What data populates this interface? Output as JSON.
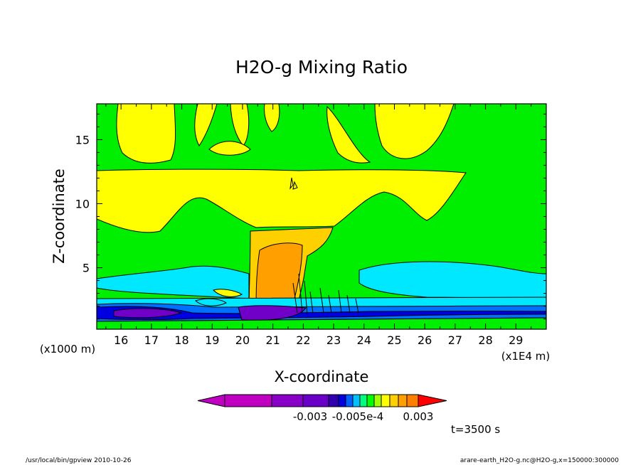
{
  "chart_data": {
    "type": "heatmap",
    "title": "H2O-g Mixing Ratio",
    "xlabel": "X-coordinate",
    "ylabel": "Z-coordinate",
    "x_unit_left": "(x1000 m)",
    "x_unit_right": "(x1E4 m)",
    "xlim": [
      15.2,
      30.0
    ],
    "ylim": [
      0.2,
      17.8
    ],
    "xticks": [
      "16",
      "17",
      "18",
      "19",
      "20",
      "21",
      "22",
      "23",
      "24",
      "25",
      "26",
      "27",
      "28",
      "29"
    ],
    "yticks": [
      "5",
      "10",
      "15"
    ],
    "colorbar": {
      "colors": [
        "#c000c0",
        "#8800c8",
        "#6a00c8",
        "#3000b0",
        "#0000e0",
        "#0060ff",
        "#00c0ff",
        "#00ff80",
        "#00ff00",
        "#a0ff00",
        "#ffff00",
        "#ffd000",
        "#ffa000",
        "#ff8000",
        "#ff0000"
      ],
      "labels": [
        "-0.003",
        "-0.005e-4",
        "0.003"
      ]
    },
    "time_label": "t=3500 s",
    "regions": [
      {
        "level": "green",
        "note": "background"
      },
      {
        "level": "yellow",
        "note": "upper band z~9-12.5"
      },
      {
        "level": "orange",
        "note": "convective core x~20.8-22"
      },
      {
        "level": "cyan",
        "note": "low layer z~1.5-4"
      },
      {
        "level": "blue",
        "note": "surface layer z~0.5-1.5"
      },
      {
        "level": "purple",
        "note": "surface minima"
      }
    ]
  },
  "footer": {
    "left": "/usr/local/bin/gpview  2010-10-26",
    "right": "arare-earth_H2O-g.nc@H2O-g,x=150000:300000"
  }
}
